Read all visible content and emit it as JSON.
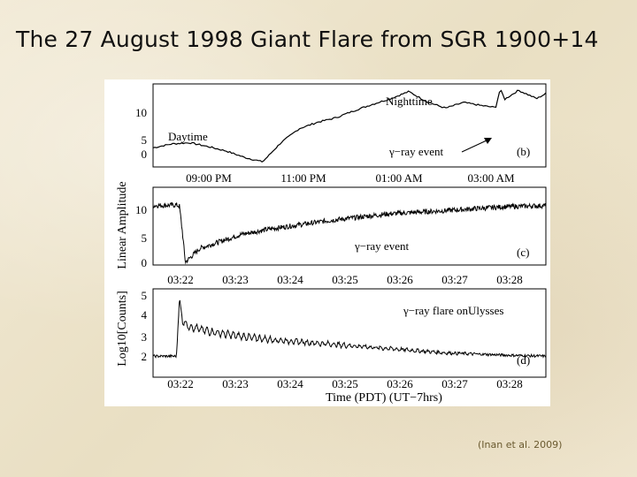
{
  "slide": {
    "title": "The 27 August 1998 Giant Flare from SGR 1900+14",
    "citation": "(Inan et al. 2009)"
  },
  "chart_data": [
    {
      "type": "line",
      "panel_label": "(b)",
      "ylabel": "Linear Amplitude",
      "x_ticks": [
        "09:00 PM",
        "11:00 PM",
        "01:00 AM",
        "03:00 AM"
      ],
      "y_ticks": [
        "0",
        "5",
        "10"
      ],
      "ylim": [
        0,
        13
      ],
      "annotations": [
        "Daytime",
        "Nighttime",
        "γ−ray event"
      ],
      "series": [
        {
          "x_hours": [
            19.9,
            20.3,
            20.7,
            21.1,
            21.5,
            21.9,
            22.3,
            22.7,
            23.1,
            23.5,
            23.9,
            24.3,
            24.7,
            25.1,
            25.5,
            25.9,
            26.3,
            26.7,
            27.1,
            27.4,
            27.5,
            27.6,
            27.9,
            28.3,
            28.5
          ],
          "values": [
            3.0,
            3.6,
            3.8,
            3.2,
            2.5,
            1.5,
            0.8,
            3.8,
            6.0,
            7.0,
            7.7,
            8.8,
            9.8,
            10.7,
            11.8,
            10.2,
            9.2,
            10.1,
            9.6,
            9.3,
            12.2,
            10.6,
            12.0,
            10.7,
            11.5
          ]
        }
      ]
    },
    {
      "type": "line",
      "panel_label": "(c)",
      "x_ticks": [
        "03:22",
        "03:23",
        "03:24",
        "03:25",
        "03:26",
        "03:27",
        "03:28"
      ],
      "y_ticks": [
        "0",
        "5",
        "10"
      ],
      "ylim": [
        0,
        14
      ],
      "annotations": [
        "γ−ray event"
      ],
      "series": [
        {
          "x_min": [
            0.0,
            0.4,
            0.45,
            0.5,
            0.55,
            0.8,
            1.5,
            2.0,
            3.0,
            4.0,
            5.0,
            6.0,
            6.7
          ],
          "values": [
            10.7,
            10.8,
            10.6,
            6.0,
            0.5,
            3.0,
            5.5,
            6.5,
            8.0,
            9.2,
            9.8,
            10.5,
            10.7
          ]
        }
      ]
    },
    {
      "type": "line",
      "panel_label": "(d)",
      "ylabel": "Log10[Counts]",
      "xlabel": "Time (PDT)  (UT−7hrs)",
      "x_ticks": [
        "03:22",
        "03:23",
        "03:24",
        "03:25",
        "03:26",
        "03:27",
        "03:28"
      ],
      "y_ticks": [
        "2",
        "3",
        "4",
        "5"
      ],
      "ylim": [
        1.5,
        5.5
      ],
      "annotations": [
        "γ−ray flare onUlysses"
      ],
      "series": [
        {
          "x_min": [
            0.0,
            0.4,
            0.45,
            0.5,
            0.6,
            1.0,
            1.5,
            2.0,
            3.0,
            4.0,
            5.0,
            6.0,
            6.7
          ],
          "values": [
            2.45,
            2.45,
            5.1,
            4.1,
            3.8,
            3.55,
            3.35,
            3.2,
            3.0,
            2.8,
            2.6,
            2.5,
            2.45
          ]
        }
      ]
    }
  ]
}
